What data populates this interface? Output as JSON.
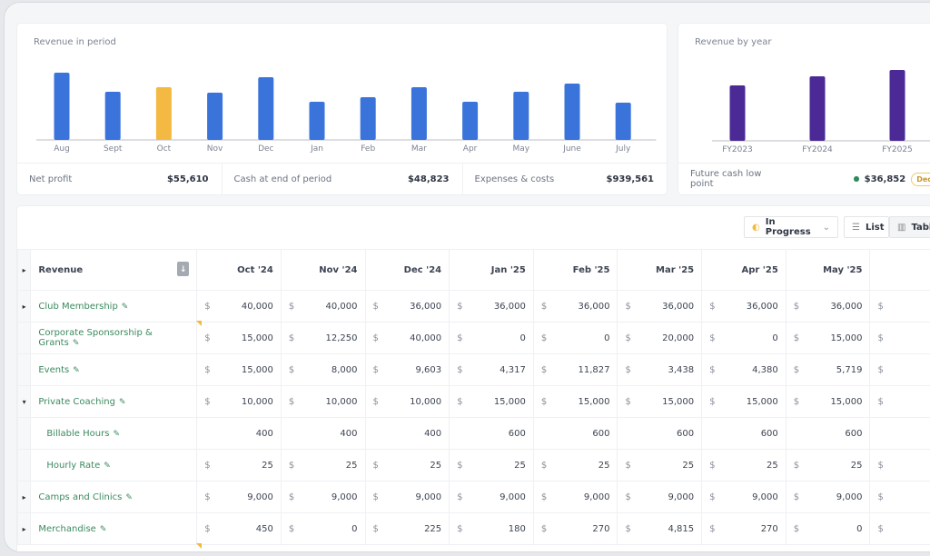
{
  "revenue_chart": {
    "title": "Revenue in period",
    "type": "bar",
    "categories": [
      "Aug",
      "Sept",
      "Oct",
      "Nov",
      "Dec",
      "Jan",
      "Feb",
      "Mar",
      "Apr",
      "May",
      "June",
      "July"
    ],
    "values": [
      74,
      53,
      58,
      52,
      69,
      42,
      47,
      58,
      42,
      53,
      62,
      41
    ],
    "highlight": "Oct",
    "colors": {
      "bar": "#3a73d9",
      "highlight": "#f4b942"
    }
  },
  "year_chart": {
    "title": "Revenue by year",
    "type": "bar",
    "categories": [
      "FY2023",
      "FY2024",
      "FY2025"
    ],
    "values": [
      61,
      71,
      78
    ],
    "colors": {
      "bar": "#4b2a96"
    }
  },
  "kpis": {
    "net_profit_label": "Net profit",
    "net_profit": "$55,610",
    "cash_label": "Cash at end of period",
    "cash": "$48,823",
    "expenses_label": "Expenses & costs",
    "expenses": "$939,561",
    "low_label": "Future cash low point",
    "low": "$36,852",
    "low_badge": "Dec"
  },
  "toolbar": {
    "status": "In Progress",
    "list": "List",
    "table": "Table"
  },
  "table": {
    "header": "Revenue",
    "columns": [
      "Oct '24",
      "Nov '24",
      "Dec '24",
      "Jan '25",
      "Feb '25",
      "Mar '25",
      "Apr '25",
      "May '25",
      ""
    ],
    "rows": [
      {
        "label": "Club Membership",
        "toggle": "▸",
        "currency": true,
        "values": [
          "40,000",
          "40,000",
          "36,000",
          "36,000",
          "36,000",
          "36,000",
          "36,000",
          "36,000",
          ""
        ]
      },
      {
        "label": "Corporate Sponsorship & Grants",
        "toggle": "",
        "currency": true,
        "values": [
          "15,000",
          "12,250",
          "40,000",
          "0",
          "0",
          "20,000",
          "0",
          "15,000",
          ""
        ]
      },
      {
        "label": "Events",
        "toggle": "",
        "currency": true,
        "values": [
          "15,000",
          "8,000",
          "9,603",
          "4,317",
          "11,827",
          "3,438",
          "4,380",
          "5,719",
          ""
        ]
      },
      {
        "label": "Private Coaching",
        "toggle": "▾",
        "currency": true,
        "values": [
          "10,000",
          "10,000",
          "10,000",
          "15,000",
          "15,000",
          "15,000",
          "15,000",
          "15,000",
          ""
        ]
      },
      {
        "label": "Billable Hours",
        "toggle": "",
        "indent": true,
        "currency": false,
        "values": [
          "400",
          "400",
          "400",
          "600",
          "600",
          "600",
          "600",
          "600",
          ""
        ]
      },
      {
        "label": "Hourly Rate",
        "toggle": "",
        "indent": true,
        "currency": true,
        "values": [
          "25",
          "25",
          "25",
          "25",
          "25",
          "25",
          "25",
          "25",
          ""
        ]
      },
      {
        "label": "Camps and Clinics",
        "toggle": "▸",
        "currency": true,
        "values": [
          "9,000",
          "9,000",
          "9,000",
          "9,000",
          "9,000",
          "9,000",
          "9,000",
          "9,000",
          ""
        ]
      },
      {
        "label": "Merchandise",
        "toggle": "▸",
        "currency": true,
        "values": [
          "450",
          "0",
          "225",
          "180",
          "270",
          "4,815",
          "270",
          "0",
          ""
        ]
      }
    ]
  }
}
